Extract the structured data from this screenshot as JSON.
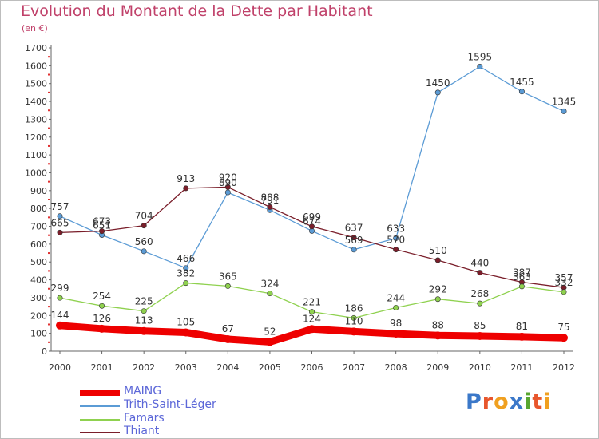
{
  "header": {
    "title": "Evolution du Montant de la Dette par Habitant",
    "unit": "(en €)"
  },
  "brand": {
    "text": "Proxiti",
    "colors": [
      "#3b78c9",
      "#e8562c",
      "#f0a020",
      "#3b78c9",
      "#58a62f",
      "#e8562c",
      "#f0a020"
    ]
  },
  "chart_data": {
    "type": "line",
    "x": [
      "2000",
      "2001",
      "2002",
      "2003",
      "2004",
      "2005",
      "2006",
      "2007",
      "2008",
      "2009",
      "2010",
      "2011",
      "2012"
    ],
    "ylim": [
      0,
      1700
    ],
    "yticks": [
      "0",
      "100",
      "200",
      "300",
      "400",
      "500",
      "600",
      "700",
      "800",
      "900",
      "1000",
      "1100",
      "1200",
      "1300",
      "1400",
      "1500",
      "1600",
      "1700"
    ],
    "grid": false,
    "legend_position": "bottom-left",
    "series": [
      {
        "name": "Trith-Saint-Léger",
        "color": "#5b9bd5",
        "values": [
          757,
          651,
          560,
          466,
          890,
          791,
          674,
          569,
          633,
          1450,
          1595,
          1455,
          1345
        ],
        "labels": [
          "757",
          "651",
          "560",
          "466",
          "890",
          "791",
          "674",
          "569",
          "633",
          "1450",
          "1595",
          "1455",
          "1345"
        ]
      },
      {
        "name": "Thiant",
        "color": "#7a1e2a",
        "values": [
          665,
          673,
          704,
          913,
          920,
          808,
          699,
          637,
          570,
          510,
          440,
          387,
          357
        ],
        "labels": [
          "665",
          "673",
          "704",
          "913",
          "920",
          "808",
          "699",
          "637",
          "570",
          "510",
          "440",
          "387",
          "357"
        ]
      },
      {
        "name": "Famars",
        "color": "#8fd14f",
        "values": [
          299,
          254,
          225,
          382,
          365,
          324,
          221,
          186,
          244,
          292,
          268,
          363,
          332
        ],
        "labels": [
          "299",
          "254",
          "225",
          "382",
          "365",
          "324",
          "221",
          "186",
          "244",
          "292",
          "268",
          "363",
          "332"
        ]
      },
      {
        "name": "MAING",
        "color": "#ee0000",
        "values": [
          144,
          126,
          113,
          105,
          67,
          52,
          124,
          110,
          98,
          88,
          85,
          81,
          75
        ],
        "labels": [
          "144",
          "126",
          "113",
          "105",
          "67",
          "52",
          "124",
          "110",
          "98",
          "88",
          "85",
          "81",
          "75"
        ]
      }
    ]
  },
  "legend": {
    "items": [
      {
        "label": "MAING",
        "color": "#ee0000",
        "thick": true
      },
      {
        "label": "Trith-Saint-Léger",
        "color": "#5b9bd5",
        "thick": false
      },
      {
        "label": "Famars",
        "color": "#8fd14f",
        "thick": false
      },
      {
        "label": "Thiant",
        "color": "#7a1e2a",
        "thick": false
      }
    ]
  }
}
